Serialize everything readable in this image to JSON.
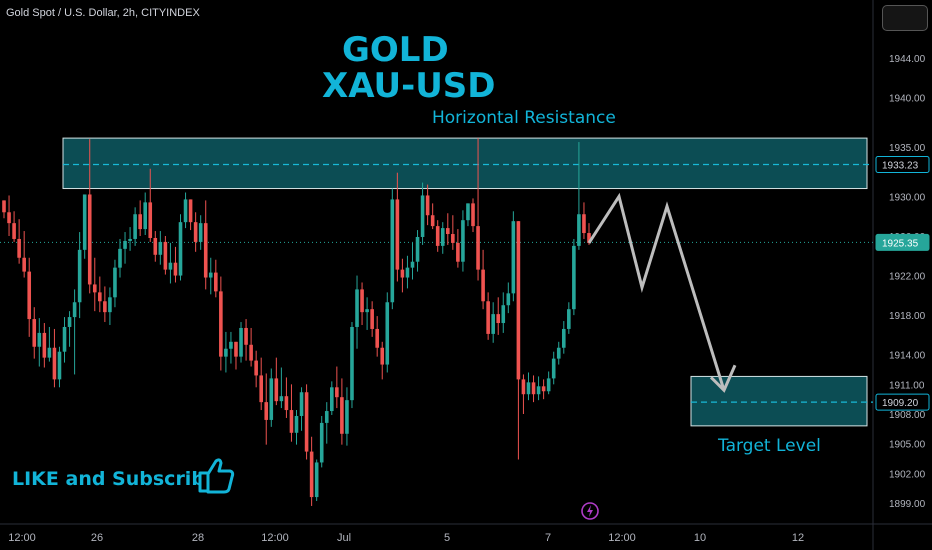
{
  "header": {
    "symbol_line": "Gold Spot / U.S. Dollar, 2h, CITYINDEX"
  },
  "annotations": {
    "title_line1": "GOLD",
    "title_line2": "XAU-USD",
    "resistance_label": "Horizontal Resistance",
    "target_label": "Target Level",
    "cta": "LIKE and Subscribe"
  },
  "icons": {
    "thumb": "thumbs-up-icon",
    "logo": "tradingview-logo-icon",
    "menu": "chart-menu-button"
  },
  "colors": {
    "up": "#26a69a",
    "down": "#ef5350",
    "accent": "#12b4d8",
    "zone_fill": "#0e5b63",
    "zone_border": "#d6e4e6",
    "projection": "#bdbdbd",
    "background": "#000000"
  },
  "chart_data": {
    "type": "candlestick",
    "symbol": "Gold Spot / U.S. Dollar",
    "timeframe": "2h",
    "source": "CITYINDEX",
    "x_ticks": [
      "12:00",
      "26",
      "28",
      "12:00",
      "Jul",
      "5",
      "7",
      "12:00",
      "10",
      "12"
    ],
    "y_ticks": [
      1944.0,
      1940.0,
      1935.0,
      1930.0,
      1926.0,
      1922.0,
      1918.0,
      1914.0,
      1911.0,
      1908.0,
      1905.0,
      1902.0,
      1899.0
    ],
    "ylim": [
      1897.5,
      1949.2
    ],
    "current_price": 1925.35,
    "price_labels": [
      1933.23,
      1925.35,
      1909.2
    ],
    "resistance_zone": {
      "label": "Horizontal Resistance",
      "low": 1930.8,
      "high": 1935.9,
      "level": 1933.23
    },
    "target_zone": {
      "label": "Target Level",
      "low": 1906.8,
      "high": 1911.8,
      "level": 1909.2
    },
    "projection_path": [
      1925.3,
      1930.0,
      1920.8,
      1929.0,
      1910.4
    ],
    "candles": [
      [
        1929.6,
        1929.6,
        1927.8,
        1928.4
      ],
      [
        1928.4,
        1930.1,
        1926.0,
        1927.3
      ],
      [
        1927.3,
        1928.5,
        1925.4,
        1925.7
      ],
      [
        1925.7,
        1927.7,
        1923.2,
        1923.8
      ],
      [
        1923.8,
        1926.5,
        1921.8,
        1922.4
      ],
      [
        1922.4,
        1923.8,
        1915.8,
        1917.6
      ],
      [
        1917.6,
        1918.8,
        1913.6,
        1914.8
      ],
      [
        1914.8,
        1917.7,
        1912.8,
        1916.2
      ],
      [
        1916.2,
        1917.2,
        1912.7,
        1913.7
      ],
      [
        1913.7,
        1916.8,
        1913.3,
        1914.7
      ],
      [
        1914.7,
        1916.6,
        1910.7,
        1911.5
      ],
      [
        1911.5,
        1914.8,
        1910.7,
        1914.3
      ],
      [
        1914.3,
        1917.8,
        1913.2,
        1916.8
      ],
      [
        1916.8,
        1918.4,
        1914.8,
        1917.8
      ],
      [
        1917.8,
        1920.6,
        1912.0,
        1919.3
      ],
      [
        1919.3,
        1926.4,
        1917.7,
        1924.6
      ],
      [
        1924.6,
        1930.2,
        1923.7,
        1930.2
      ],
      [
        1930.2,
        1935.8,
        1920.2,
        1921.1
      ],
      [
        1921.1,
        1923.8,
        1918.4,
        1920.3
      ],
      [
        1920.3,
        1921.9,
        1918.3,
        1919.4
      ],
      [
        1919.4,
        1920.9,
        1917.3,
        1918.3
      ],
      [
        1918.3,
        1920.8,
        1917.0,
        1919.8
      ],
      [
        1919.8,
        1923.6,
        1918.8,
        1922.8
      ],
      [
        1922.8,
        1925.7,
        1921.8,
        1924.7
      ],
      [
        1924.7,
        1926.4,
        1923.2,
        1925.5
      ],
      [
        1925.5,
        1926.9,
        1924.5,
        1925.7
      ],
      [
        1925.7,
        1928.9,
        1925.0,
        1928.2
      ],
      [
        1928.2,
        1929.6,
        1926.0,
        1926.7
      ],
      [
        1926.7,
        1930.4,
        1926.1,
        1929.4
      ],
      [
        1929.4,
        1932.8,
        1925.4,
        1925.8
      ],
      [
        1925.8,
        1926.5,
        1923.4,
        1924.1
      ],
      [
        1924.1,
        1926.5,
        1923.1,
        1925.4
      ],
      [
        1925.4,
        1926.0,
        1922.1,
        1922.6
      ],
      [
        1922.6,
        1925.3,
        1921.2,
        1923.3
      ],
      [
        1923.3,
        1924.9,
        1921.3,
        1922.0
      ],
      [
        1922.0,
        1928.2,
        1921.5,
        1927.4
      ],
      [
        1927.4,
        1930.4,
        1926.8,
        1929.7
      ],
      [
        1929.7,
        1929.7,
        1926.6,
        1927.4
      ],
      [
        1927.4,
        1928.4,
        1924.4,
        1925.4
      ],
      [
        1925.4,
        1928.1,
        1924.6,
        1927.3
      ],
      [
        1927.3,
        1929.6,
        1920.6,
        1921.8
      ],
      [
        1921.8,
        1923.8,
        1920.1,
        1922.3
      ],
      [
        1922.3,
        1923.6,
        1919.8,
        1920.4
      ],
      [
        1920.4,
        1921.9,
        1912.4,
        1913.8
      ],
      [
        1913.8,
        1916.3,
        1912.2,
        1914.6
      ],
      [
        1914.6,
        1916.3,
        1913.1,
        1915.3
      ],
      [
        1915.3,
        1915.3,
        1912.5,
        1913.8
      ],
      [
        1913.8,
        1917.3,
        1913.2,
        1916.7
      ],
      [
        1916.7,
        1917.6,
        1913.4,
        1915.0
      ],
      [
        1915.0,
        1916.7,
        1912.8,
        1913.4
      ],
      [
        1913.4,
        1914.4,
        1910.7,
        1911.9
      ],
      [
        1911.9,
        1913.7,
        1908.4,
        1909.2
      ],
      [
        1909.2,
        1912.1,
        1904.9,
        1907.4
      ],
      [
        1907.4,
        1912.6,
        1906.7,
        1911.6
      ],
      [
        1911.6,
        1913.7,
        1908.9,
        1909.3
      ],
      [
        1909.3,
        1912.7,
        1908.6,
        1909.8
      ],
      [
        1909.8,
        1911.7,
        1907.6,
        1908.4
      ],
      [
        1908.4,
        1911.0,
        1905.2,
        1906.1
      ],
      [
        1906.1,
        1908.4,
        1904.9,
        1907.8
      ],
      [
        1907.8,
        1910.7,
        1906.3,
        1910.2
      ],
      [
        1910.2,
        1911.0,
        1903.4,
        1904.2
      ],
      [
        1904.2,
        1905.7,
        1898.7,
        1899.6
      ],
      [
        1899.6,
        1903.4,
        1899.2,
        1903.1
      ],
      [
        1903.1,
        1907.8,
        1902.6,
        1907.1
      ],
      [
        1907.1,
        1909.2,
        1905.0,
        1908.3
      ],
      [
        1908.3,
        1911.3,
        1907.9,
        1910.7
      ],
      [
        1910.7,
        1912.8,
        1908.6,
        1909.7
      ],
      [
        1909.7,
        1911.6,
        1904.9,
        1906.0
      ],
      [
        1906.0,
        1910.7,
        1904.8,
        1909.4
      ],
      [
        1909.4,
        1917.3,
        1908.6,
        1916.8
      ],
      [
        1916.8,
        1922.0,
        1914.6,
        1920.6
      ],
      [
        1920.6,
        1921.3,
        1917.0,
        1918.3
      ],
      [
        1918.3,
        1919.8,
        1916.5,
        1918.6
      ],
      [
        1918.6,
        1919.4,
        1915.8,
        1916.6
      ],
      [
        1916.6,
        1917.9,
        1913.8,
        1914.7
      ],
      [
        1914.7,
        1915.3,
        1911.5,
        1913.0
      ],
      [
        1913.0,
        1920.3,
        1912.2,
        1919.3
      ],
      [
        1919.3,
        1930.8,
        1918.6,
        1929.7
      ],
      [
        1929.7,
        1932.4,
        1921.4,
        1922.6
      ],
      [
        1922.6,
        1923.7,
        1920.3,
        1921.8
      ],
      [
        1921.8,
        1924.0,
        1920.7,
        1922.8
      ],
      [
        1922.8,
        1925.3,
        1921.6,
        1923.4
      ],
      [
        1923.4,
        1926.6,
        1922.4,
        1925.9
      ],
      [
        1925.9,
        1931.4,
        1925.1,
        1930.1
      ],
      [
        1930.1,
        1931.2,
        1927.1,
        1928.1
      ],
      [
        1928.1,
        1929.3,
        1926.7,
        1927.0
      ],
      [
        1927.0,
        1927.6,
        1924.4,
        1925.0
      ],
      [
        1925.0,
        1927.4,
        1924.2,
        1926.8
      ],
      [
        1926.8,
        1928.3,
        1925.1,
        1926.2
      ],
      [
        1926.2,
        1928.1,
        1924.6,
        1925.3
      ],
      [
        1925.3,
        1926.7,
        1922.8,
        1923.4
      ],
      [
        1923.4,
        1928.6,
        1922.4,
        1927.6
      ],
      [
        1927.6,
        1929.3,
        1927.0,
        1929.3
      ],
      [
        1929.3,
        1929.8,
        1926.4,
        1927.0
      ],
      [
        1927.0,
        1935.9,
        1921.5,
        1922.6
      ],
      [
        1922.6,
        1924.6,
        1918.6,
        1919.4
      ],
      [
        1919.4,
        1920.3,
        1915.5,
        1916.1
      ],
      [
        1916.1,
        1919.3,
        1915.2,
        1918.1
      ],
      [
        1918.1,
        1919.8,
        1916.0,
        1917.2
      ],
      [
        1917.2,
        1920.3,
        1916.2,
        1919.0
      ],
      [
        1919.0,
        1921.3,
        1918.2,
        1920.2
      ],
      [
        1920.2,
        1928.5,
        1919.4,
        1927.5
      ],
      [
        1927.5,
        1927.5,
        1903.4,
        1911.5
      ],
      [
        1911.5,
        1912.0,
        1908.0,
        1910.0
      ],
      [
        1910.0,
        1912.2,
        1909.4,
        1911.2
      ],
      [
        1911.2,
        1911.9,
        1909.2,
        1910.0
      ],
      [
        1910.0,
        1911.8,
        1909.4,
        1910.8
      ],
      [
        1910.8,
        1911.5,
        1909.5,
        1910.3
      ],
      [
        1910.3,
        1912.3,
        1910.0,
        1911.6
      ],
      [
        1911.6,
        1914.3,
        1911.0,
        1913.6
      ],
      [
        1913.6,
        1915.3,
        1913.0,
        1914.7
      ],
      [
        1914.7,
        1917.4,
        1914.1,
        1916.6
      ],
      [
        1916.6,
        1919.3,
        1916.1,
        1918.6
      ],
      [
        1918.6,
        1925.7,
        1918.0,
        1925.0
      ],
      [
        1925.0,
        1935.5,
        1924.6,
        1928.2
      ],
      [
        1928.2,
        1929.4,
        1925.7,
        1926.3
      ],
      [
        1926.3,
        1927.3,
        1925.1,
        1925.3
      ]
    ]
  }
}
